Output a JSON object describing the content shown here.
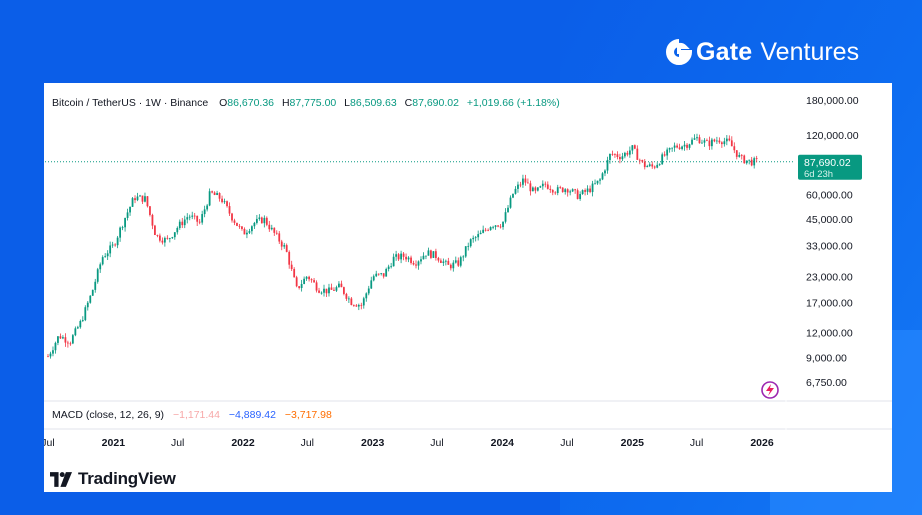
{
  "brand": {
    "name_bold": "Gate",
    "name_light": "Ventures"
  },
  "legend": {
    "symbol": "Bitcoin / TetherUS · 1W · Binance",
    "o_label": "O",
    "o": "86,670.36",
    "h_label": "H",
    "h": "87,775.00",
    "l_label": "L",
    "l": "86,509.63",
    "c_label": "C",
    "c": "87,690.02",
    "change": "+1,019.66 (+1.18%)"
  },
  "price_tag": {
    "price": "87,690.02",
    "countdown": "6d 23h"
  },
  "macd": {
    "label": "MACD (close, 12, 26, 9)",
    "histogram": "−1,171.44",
    "macd": "−4,889.42",
    "signal": "−3,717.98"
  },
  "footer": {
    "tradingview": "TradingView"
  },
  "colors": {
    "up": "#089981",
    "down": "#f23645",
    "price_tag": "#089981",
    "background": "#0b5ee8"
  },
  "chart_data": {
    "type": "candlestick",
    "title": "Bitcoin / TetherUS · 1W · Binance",
    "y_scale": "log",
    "ylim": [
      5800,
      200000
    ],
    "y_ticks": [
      180000,
      120000,
      60000,
      45000,
      33000,
      23000,
      17000,
      12000,
      9000,
      6750
    ],
    "y_tick_labels": [
      "180,000.00",
      "120,000.00",
      "60,000.00",
      "45,000.00",
      "33,000.00",
      "23,000.00",
      "17,000.00",
      "12,000.00",
      "9,000.00",
      "6,750.00"
    ],
    "x_ticks": [
      "Jul",
      "2021",
      "Jul",
      "2022",
      "Jul",
      "2023",
      "Jul",
      "2024",
      "Jul",
      "2025",
      "Jul",
      "2026"
    ],
    "x_tick_dates": [
      "2020-07-01",
      "2021-01-01",
      "2021-07-01",
      "2022-01-01",
      "2022-07-01",
      "2023-01-01",
      "2023-07-01",
      "2024-01-01",
      "2024-07-01",
      "2025-01-01",
      "2025-07-01",
      "2026-01-01"
    ],
    "series": [
      {
        "values": [
          [
            "2020-07-01",
            9100
          ],
          [
            "2020-08-01",
            11600
          ],
          [
            "2020-09-01",
            10800
          ],
          [
            "2020-10-01",
            13500
          ],
          [
            "2020-11-01",
            19000
          ],
          [
            "2020-12-01",
            28900
          ],
          [
            "2021-01-01",
            33000
          ],
          [
            "2021-02-01",
            45000
          ],
          [
            "2021-03-01",
            58000
          ],
          [
            "2021-04-01",
            57000
          ],
          [
            "2021-05-01",
            37000
          ],
          [
            "2021-06-01",
            35000
          ],
          [
            "2021-07-01",
            41000
          ],
          [
            "2021-08-01",
            47000
          ],
          [
            "2021-09-01",
            43000
          ],
          [
            "2021-10-01",
            61000
          ],
          [
            "2021-11-01",
            57000
          ],
          [
            "2021-12-01",
            46000
          ],
          [
            "2022-01-01",
            38000
          ],
          [
            "2022-02-01",
            43000
          ],
          [
            "2022-03-01",
            45000
          ],
          [
            "2022-04-01",
            37600
          ],
          [
            "2022-05-01",
            31800
          ],
          [
            "2022-06-01",
            19900
          ],
          [
            "2022-07-01",
            23300
          ],
          [
            "2022-08-01",
            20000
          ],
          [
            "2022-09-01",
            19400
          ],
          [
            "2022-10-01",
            20500
          ],
          [
            "2022-11-01",
            17200
          ],
          [
            "2022-12-01",
            16500
          ],
          [
            "2023-01-01",
            23100
          ],
          [
            "2023-02-01",
            23500
          ],
          [
            "2023-03-01",
            28500
          ],
          [
            "2023-04-01",
            29300
          ],
          [
            "2023-05-01",
            27200
          ],
          [
            "2023-06-01",
            30500
          ],
          [
            "2023-07-01",
            29200
          ],
          [
            "2023-08-01",
            26000
          ],
          [
            "2023-09-01",
            27000
          ],
          [
            "2023-10-01",
            34500
          ],
          [
            "2023-11-01",
            37700
          ],
          [
            "2023-12-01",
            42300
          ],
          [
            "2024-01-01",
            42600
          ],
          [
            "2024-02-01",
            61200
          ],
          [
            "2024-03-01",
            71300
          ],
          [
            "2024-04-01",
            60700
          ],
          [
            "2024-05-01",
            67500
          ],
          [
            "2024-06-01",
            62700
          ],
          [
            "2024-07-01",
            64600
          ],
          [
            "2024-08-01",
            59000
          ],
          [
            "2024-09-01",
            63300
          ],
          [
            "2024-10-01",
            70200
          ],
          [
            "2024-11-01",
            96400
          ],
          [
            "2024-12-01",
            93400
          ],
          [
            "2025-01-01",
            102400
          ],
          [
            "2025-02-01",
            84300
          ],
          [
            "2025-03-01",
            82500
          ],
          [
            "2025-04-01",
            94200
          ],
          [
            "2025-05-01",
            104600
          ],
          [
            "2025-06-01",
            107100
          ],
          [
            "2025-07-01",
            115700
          ],
          [
            "2025-08-01",
            108200
          ],
          [
            "2025-09-01",
            114000
          ],
          [
            "2025-10-01",
            109500
          ],
          [
            "2025-11-01",
            91000
          ],
          [
            "2025-12-01",
            87690
          ]
        ]
      }
    ],
    "last_price": 87690.02,
    "grid": false
  }
}
